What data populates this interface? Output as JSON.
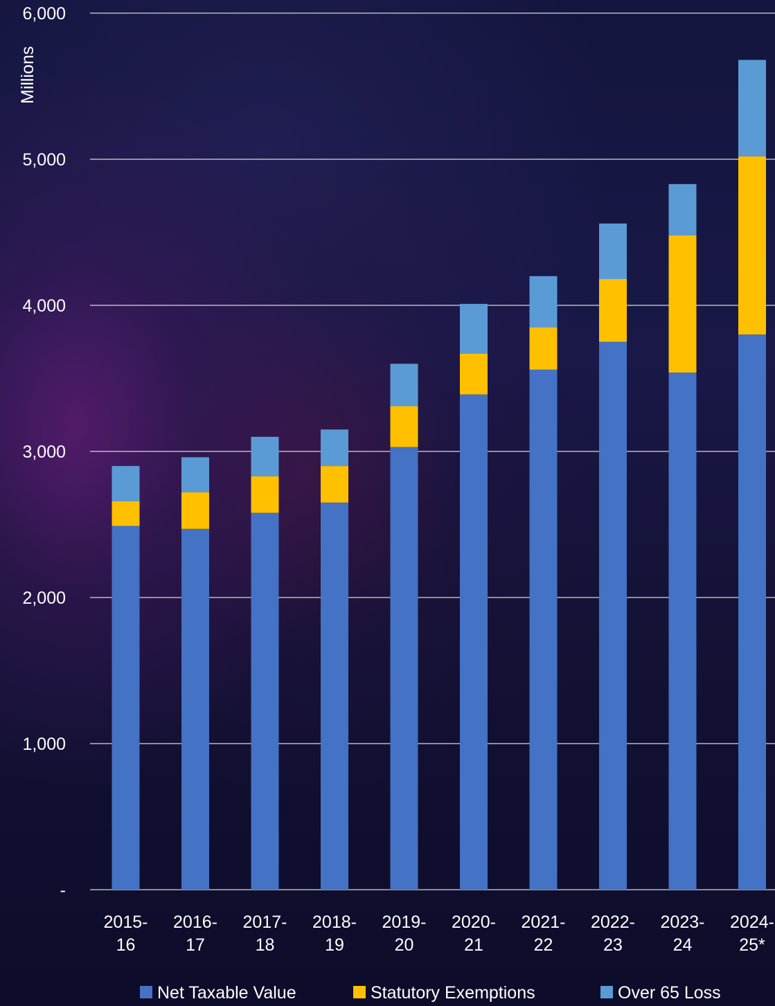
{
  "chart_data": {
    "type": "bar",
    "stacked": true,
    "unit_label": "Millions",
    "ylim": [
      0,
      6000
    ],
    "y_ticks": [
      {
        "value": 0,
        "label": "-"
      },
      {
        "value": 1000,
        "label": "1,000"
      },
      {
        "value": 2000,
        "label": "2,000"
      },
      {
        "value": 3000,
        "label": "3,000"
      },
      {
        "value": 4000,
        "label": "4,000"
      },
      {
        "value": 5000,
        "label": "5,000"
      },
      {
        "value": 6000,
        "label": "6,000"
      }
    ],
    "categories": [
      [
        "2015-",
        "16"
      ],
      [
        "2016-",
        "17"
      ],
      [
        "2017-",
        "18"
      ],
      [
        "2018-",
        "19"
      ],
      [
        "2019-",
        "20"
      ],
      [
        "2020-",
        "21"
      ],
      [
        "2021-",
        "22"
      ],
      [
        "2022-",
        "23"
      ],
      [
        "2023-",
        "24"
      ],
      [
        "2024-",
        "25*"
      ]
    ],
    "series": [
      {
        "name": "Net Taxable Value",
        "color": "#4472c4",
        "values": [
          2490,
          2470,
          2580,
          2650,
          3030,
          3390,
          3560,
          3750,
          3540,
          3800
        ]
      },
      {
        "name": "Statutory Exemptions",
        "color": "#ffc000",
        "values": [
          170,
          250,
          250,
          250,
          280,
          280,
          290,
          430,
          940,
          1220
        ]
      },
      {
        "name": "Over 65 Loss",
        "color": "#5b9bd5",
        "values": [
          240,
          240,
          270,
          250,
          290,
          340,
          350,
          380,
          350,
          660
        ]
      }
    ],
    "grid": true,
    "legend_position": "bottom"
  }
}
